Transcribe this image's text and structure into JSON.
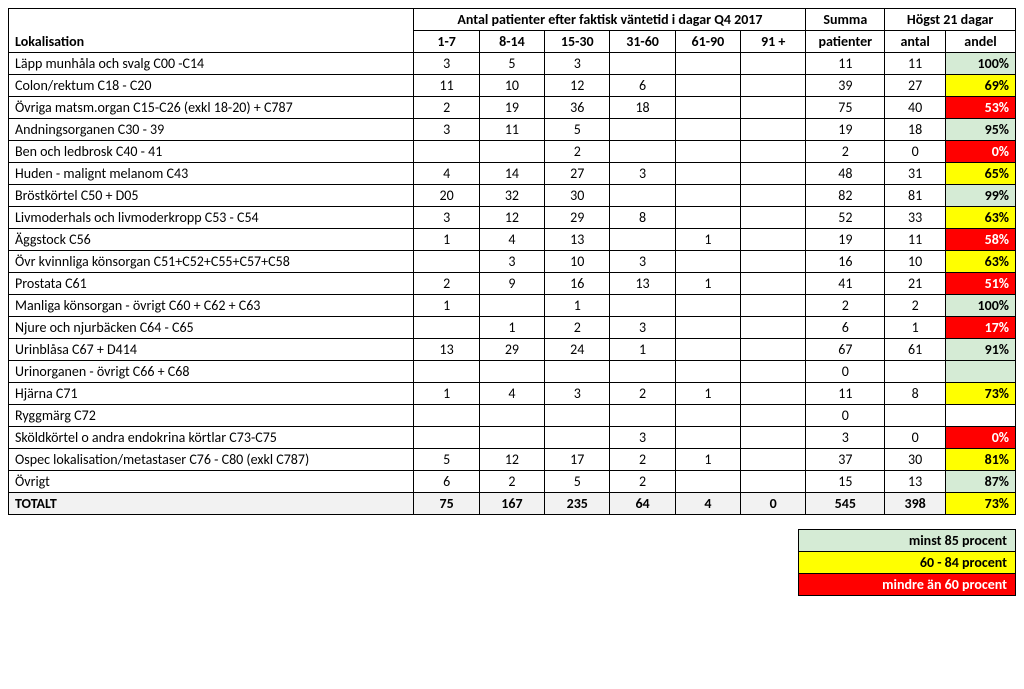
{
  "colors": {
    "green": "#d5ebd5",
    "yellow": "#ffff00",
    "red": "#ff0000",
    "gray": "#f2f2f2"
  },
  "header": {
    "spanTitle": "Antal patienter efter faktisk väntetid i dagar Q4 2017",
    "summa": "Summa",
    "hogst": "Högst 21 dagar",
    "lokalisation": "Lokalisation",
    "bucketLabels": [
      "1-7",
      "8-14",
      "15-30",
      "31-60",
      "61-90",
      "91 +"
    ],
    "patienter": "patienter",
    "antal": "antal",
    "andel": "andel"
  },
  "rows": [
    {
      "lok": "Läpp munhåla och svalg C00 -C14",
      "b": [
        "3",
        "5",
        "3",
        "",
        "",
        ""
      ],
      "sum": "11",
      "antal": "11",
      "andel": "100%",
      "color": "green"
    },
    {
      "lok": "Colon/rektum C18 - C20",
      "b": [
        "11",
        "10",
        "12",
        "6",
        "",
        ""
      ],
      "sum": "39",
      "antal": "27",
      "andel": "69%",
      "color": "yellow"
    },
    {
      "lok": "Övriga matsm.organ C15-C26 (exkl 18-20) + C787",
      "b": [
        "2",
        "19",
        "36",
        "18",
        "",
        ""
      ],
      "sum": "75",
      "antal": "40",
      "andel": "53%",
      "color": "red"
    },
    {
      "lok": "Andningsorganen C30 - 39",
      "b": [
        "3",
        "11",
        "5",
        "",
        "",
        ""
      ],
      "sum": "19",
      "antal": "18",
      "andel": "95%",
      "color": "green"
    },
    {
      "lok": "Ben och ledbrosk C40 - 41",
      "b": [
        "",
        "",
        "2",
        "",
        "",
        ""
      ],
      "sum": "2",
      "antal": "0",
      "andel": "0%",
      "color": "red"
    },
    {
      "lok": "Huden - malignt melanom C43",
      "b": [
        "4",
        "14",
        "27",
        "3",
        "",
        ""
      ],
      "sum": "48",
      "antal": "31",
      "andel": "65%",
      "color": "yellow"
    },
    {
      "lok": "Bröstkörtel C50 + D05",
      "b": [
        "20",
        "32",
        "30",
        "",
        "",
        ""
      ],
      "sum": "82",
      "antal": "81",
      "andel": "99%",
      "color": "green"
    },
    {
      "lok": "Livmoderhals och livmoderkropp C53 - C54",
      "b": [
        "3",
        "12",
        "29",
        "8",
        "",
        ""
      ],
      "sum": "52",
      "antal": "33",
      "andel": "63%",
      "color": "yellow"
    },
    {
      "lok": "Äggstock C56",
      "b": [
        "1",
        "4",
        "13",
        "",
        "1",
        ""
      ],
      "sum": "19",
      "antal": "11",
      "andel": "58%",
      "color": "red"
    },
    {
      "lok": "Övr kvinnliga könsorgan C51+C52+C55+C57+C58",
      "b": [
        "",
        "3",
        "10",
        "3",
        "",
        ""
      ],
      "sum": "16",
      "antal": "10",
      "andel": "63%",
      "color": "yellow"
    },
    {
      "lok": "Prostata C61",
      "b": [
        "2",
        "9",
        "16",
        "13",
        "1",
        ""
      ],
      "sum": "41",
      "antal": "21",
      "andel": "51%",
      "color": "red"
    },
    {
      "lok": "Manliga könsorgan - övrigt   C60 + C62 + C63",
      "b": [
        "1",
        "",
        "1",
        "",
        "",
        ""
      ],
      "sum": "2",
      "antal": "2",
      "andel": "100%",
      "color": "green"
    },
    {
      "lok": "Njure och njurbäcken C64 - C65",
      "b": [
        "",
        "1",
        "2",
        "3",
        "",
        ""
      ],
      "sum": "6",
      "antal": "1",
      "andel": "17%",
      "color": "red"
    },
    {
      "lok": "Urinblåsa C67 + D414",
      "b": [
        "13",
        "29",
        "24",
        "1",
        "",
        ""
      ],
      "sum": "67",
      "antal": "61",
      "andel": "91%",
      "color": "green"
    },
    {
      "lok": "Urinorganen - övrigt C66 + C68",
      "b": [
        "",
        "",
        "",
        "",
        "",
        ""
      ],
      "sum": "0",
      "antal": "",
      "andel": "",
      "color": "green"
    },
    {
      "lok": "Hjärna C71",
      "b": [
        "1",
        "4",
        "3",
        "2",
        "1",
        ""
      ],
      "sum": "11",
      "antal": "8",
      "andel": "73%",
      "color": "yellow"
    },
    {
      "lok": "Ryggmärg C72",
      "b": [
        "",
        "",
        "",
        "",
        "",
        ""
      ],
      "sum": "0",
      "antal": "",
      "andel": "",
      "color": "none"
    },
    {
      "lok": "Sköldkörtel o andra endokrina körtlar C73-C75",
      "b": [
        "",
        "",
        "",
        "3",
        "",
        ""
      ],
      "sum": "3",
      "antal": "0",
      "andel": "0%",
      "color": "red"
    },
    {
      "lok": "Ospec lokalisation/metastaser C76 - C80 (exkl C787)",
      "b": [
        "5",
        "12",
        "17",
        "2",
        "1",
        ""
      ],
      "sum": "37",
      "antal": "30",
      "andel": "81%",
      "color": "yellow"
    },
    {
      "lok": "Övrigt",
      "b": [
        "6",
        "2",
        "5",
        "2",
        "",
        ""
      ],
      "sum": "15",
      "antal": "13",
      "andel": "87%",
      "color": "green"
    }
  ],
  "total": {
    "label": "TOTALT",
    "b": [
      "75",
      "167",
      "235",
      "64",
      "4",
      "0"
    ],
    "sum": "545",
    "antal": "398",
    "andel": "73%",
    "color": "yellow"
  },
  "legend": [
    {
      "label": "minst 85 procent",
      "color": "green"
    },
    {
      "label": "60 - 84 procent",
      "color": "yellow"
    },
    {
      "label": "mindre än 60 procent",
      "color": "red",
      "textColor": "#ffffff"
    }
  ]
}
